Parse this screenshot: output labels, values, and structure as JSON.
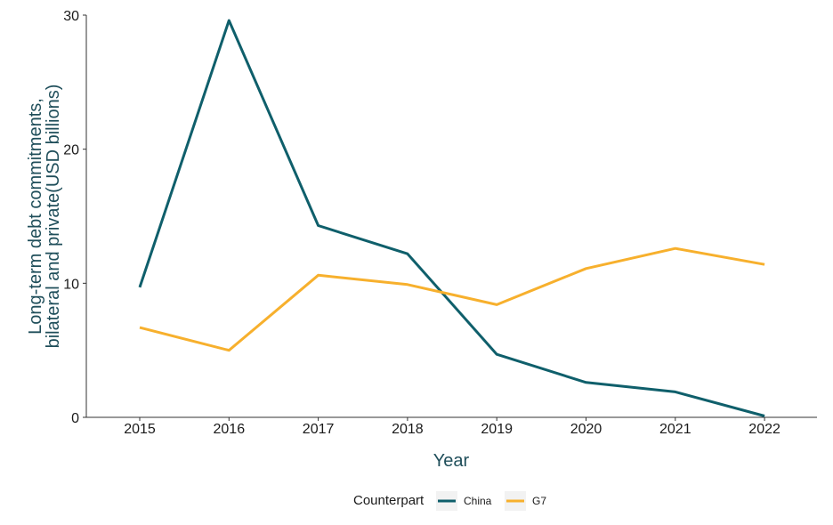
{
  "colors": {
    "china": "#0f5f6b",
    "g7": "#f7b02d",
    "axis": "#333333",
    "axis_title": "#1f4e5a"
  },
  "chart_data": {
    "type": "line",
    "x": [
      "2015",
      "2016",
      "2017",
      "2018",
      "2019",
      "2020",
      "2021",
      "2022"
    ],
    "series": [
      {
        "name": "China",
        "color": "#0f5f6b",
        "values": [
          9.7,
          29.6,
          14.3,
          12.2,
          4.7,
          2.6,
          1.9,
          0.1
        ]
      },
      {
        "name": "G7",
        "color": "#f7b02d",
        "values": [
          6.7,
          5.0,
          10.6,
          9.9,
          8.4,
          11.1,
          12.6,
          11.4
        ]
      }
    ],
    "xlabel": "Year",
    "ylabel_lines": [
      "Long-term debt commitments,",
      "bilateral and private(USD billions)"
    ],
    "ylim": [
      0,
      30
    ],
    "yticks": [
      "0",
      "10",
      "20",
      "30"
    ],
    "grid": false,
    "legend": {
      "title": "Counterpart",
      "placement": "bottom",
      "entries": [
        "China",
        "G7"
      ]
    }
  }
}
